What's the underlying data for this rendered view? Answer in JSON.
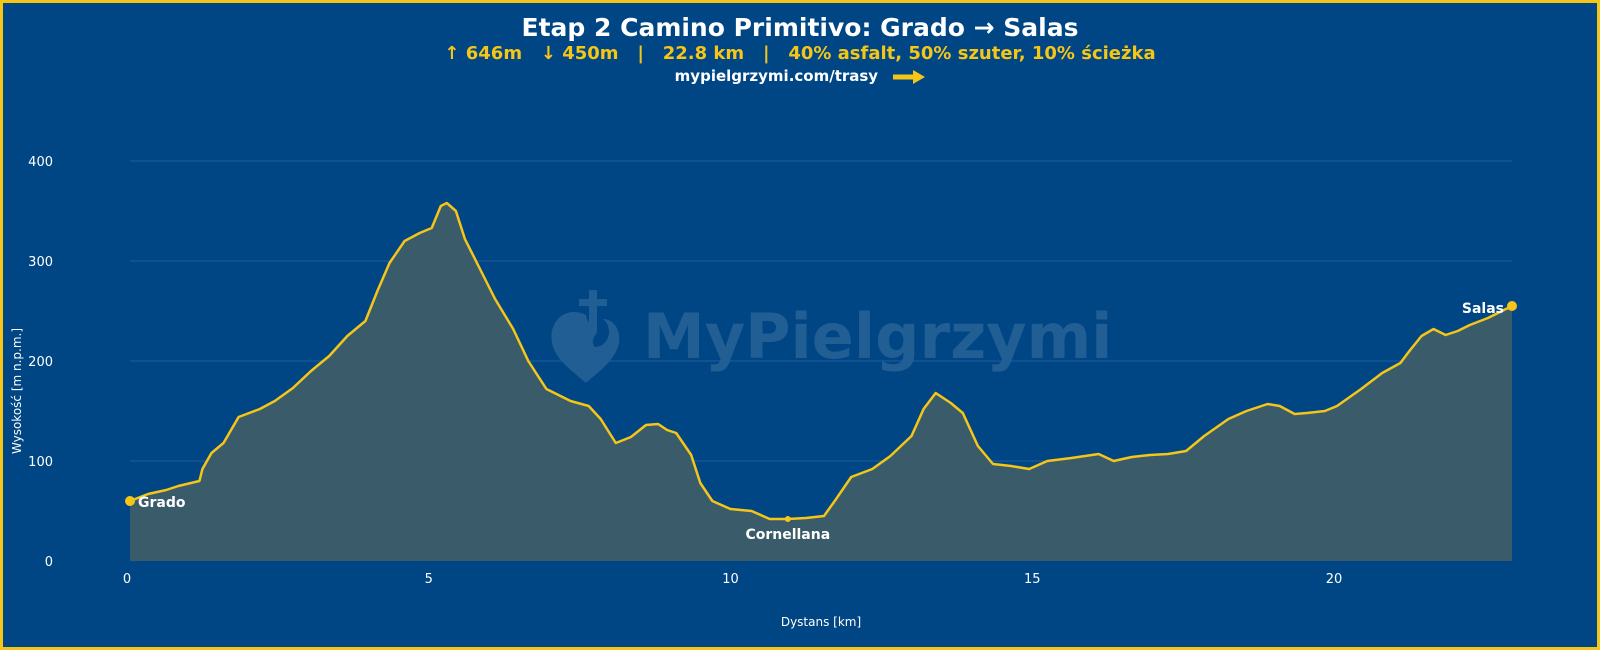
{
  "header": {
    "title": "Etap 2 Camino Primitivo: Grado → Salas",
    "subtitle": "↑ 646m   ↓ 450m   |   22.8 km   |   40% asfalt, 50% szuter, 10% ścieżka",
    "link": "mypielgrzymi.com/trasy"
  },
  "watermark": {
    "text": "MyPielgrzymi"
  },
  "colors": {
    "background": "#004684",
    "frame": "#f5c518",
    "line": "#f5c518",
    "fill": "#3a5c6a",
    "grid": "#1f5f9e"
  },
  "chart_data": {
    "type": "area",
    "title": "Etap 2 Camino Primitivo: Grado → Salas",
    "xlabel": "Dystans [km]",
    "ylabel": "Wysokość [m n.p.m.]",
    "xlim": [
      0,
      22.9
    ],
    "ylim": [
      0,
      400
    ],
    "xticks": [
      0,
      5,
      10,
      15,
      20
    ],
    "yticks": [
      0,
      100,
      200,
      300,
      400
    ],
    "grid": "horizontal",
    "x": [
      0,
      0.3,
      0.6,
      0.8,
      1.15,
      1.2,
      1.35,
      1.55,
      1.8,
      2.15,
      2.4,
      2.7,
      3.0,
      3.3,
      3.6,
      3.9,
      4.1,
      4.3,
      4.55,
      4.8,
      5.0,
      5.15,
      5.25,
      5.4,
      5.55,
      5.8,
      6.05,
      6.35,
      6.6,
      6.9,
      7.3,
      7.6,
      7.8,
      8.05,
      8.3,
      8.55,
      8.75,
      8.9,
      9.05,
      9.3,
      9.45,
      9.65,
      9.95,
      10.3,
      10.6,
      10.9,
      11.2,
      11.5,
      11.7,
      11.95,
      12.3,
      12.6,
      12.95,
      13.15,
      13.35,
      13.6,
      13.8,
      14.05,
      14.3,
      14.6,
      14.9,
      15.2,
      15.6,
      16.05,
      16.3,
      16.6,
      16.9,
      17.2,
      17.5,
      17.8,
      18.2,
      18.5,
      18.85,
      19.05,
      19.3,
      19.5,
      19.8,
      20.0,
      20.4,
      20.75,
      21.05,
      21.2,
      21.4,
      21.6,
      21.8,
      22.0,
      22.2,
      22.5,
      22.9
    ],
    "y": [
      60,
      67,
      71,
      75,
      80,
      92,
      108,
      118,
      144,
      152,
      160,
      173,
      190,
      205,
      225,
      240,
      270,
      298,
      320,
      328,
      333,
      355,
      358,
      350,
      322,
      292,
      262,
      232,
      200,
      172,
      160,
      155,
      142,
      118,
      124,
      136,
      137,
      131,
      128,
      106,
      78,
      60,
      52,
      50,
      42,
      42,
      43,
      45,
      62,
      84,
      92,
      105,
      125,
      152,
      168,
      158,
      148,
      115,
      97,
      95,
      92,
      100,
      103,
      107,
      100,
      104,
      106,
      107,
      110,
      125,
      142,
      150,
      157,
      155,
      147,
      148,
      150,
      155,
      172,
      188,
      198,
      210,
      225,
      232,
      226,
      230,
      236,
      243,
      255
    ],
    "annotations": [
      {
        "label": "Grado",
        "x": 0,
        "y": 60
      },
      {
        "label": "Cornellana",
        "x": 10.9,
        "y": 42
      },
      {
        "label": "Salas",
        "x": 22.9,
        "y": 255
      }
    ]
  }
}
